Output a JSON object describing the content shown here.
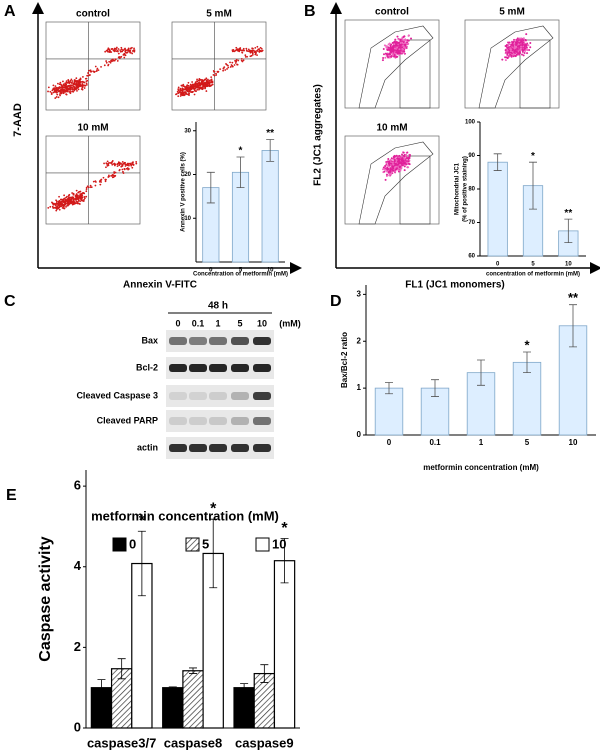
{
  "panels": {
    "A": {
      "letter": "A",
      "y_label": "7-AAD",
      "x_label": "Annexin V-FITC",
      "plots": [
        "control",
        "5 mM",
        "10 mM"
      ]
    },
    "B": {
      "letter": "B",
      "y_label": "FL2 (JC1 aggregates)",
      "x_label": "FL1 (JC1 monomers)",
      "plots": [
        "control",
        "5 mM",
        "10 mM"
      ]
    },
    "C": {
      "letter": "C",
      "time": "48 h",
      "unit": "(mM)",
      "doses": [
        "0",
        "0.1",
        "1",
        "5",
        "10"
      ],
      "bands": [
        "Bax",
        "Bcl-2",
        "Cleaved Caspase 3",
        "Cleaved PARP",
        "actin"
      ]
    },
    "D": {
      "letter": "D"
    },
    "E": {
      "letter": "E"
    }
  },
  "chart_data": [
    {
      "type": "bar",
      "y_label": "Annexin V positive cells (%)",
      "x_label": "Concentration of metformin (mM)",
      "categories": [
        "0",
        "5",
        "10"
      ],
      "values": [
        17,
        20.5,
        25.5
      ],
      "errors": [
        3.5,
        3.5,
        2.5
      ],
      "significance": [
        null,
        "*",
        "**"
      ],
      "color": "#ddeeff",
      "ylim": [
        0,
        32
      ],
      "yticks": [
        10,
        20,
        30
      ]
    },
    {
      "type": "bar",
      "y_label": [
        "Mitochondrial JC1",
        "(% of positive staining)"
      ],
      "x_label": "concentration of metformin (mM)",
      "categories": [
        "0",
        "5",
        "10"
      ],
      "values": [
        88,
        81,
        67.5
      ],
      "errors": [
        2.5,
        7,
        3.5
      ],
      "significance": [
        null,
        "*",
        "**"
      ],
      "color": "#ddeeff",
      "ylim": [
        60,
        100
      ],
      "yticks": [
        60,
        70,
        80,
        90,
        100
      ]
    },
    {
      "type": "bar",
      "y_label": "Bax/Bcl-2 ratio",
      "x_label": "metformin concentration (mM)",
      "categories": [
        "0",
        "0.1",
        "1",
        "5",
        "10"
      ],
      "values": [
        1.0,
        1.0,
        1.33,
        1.55,
        2.33
      ],
      "errors": [
        0.12,
        0.18,
        0.27,
        0.22,
        0.45
      ],
      "significance": [
        null,
        null,
        null,
        "*",
        "**"
      ],
      "color": "#ddeeff",
      "ylim": [
        0,
        3.2
      ],
      "yticks": [
        0,
        1,
        2,
        3
      ]
    },
    {
      "type": "grouped-bar",
      "y_label": "Caspase activity",
      "legend_title": "metformin concentration (mM)",
      "categories": [
        "caspase3/7",
        "caspase8",
        "caspase9"
      ],
      "series": [
        {
          "name": "0",
          "color": "#000000",
          "values": [
            1.0,
            1.0,
            1.0
          ],
          "errors": [
            0.2,
            0.02,
            0.1
          ]
        },
        {
          "name": "5",
          "color": "#ffffff",
          "hatch": true,
          "values": [
            1.47,
            1.42,
            1.35
          ],
          "errors": [
            0.25,
            0.07,
            0.22
          ]
        },
        {
          "name": "10",
          "color": "#ffffff",
          "values": [
            4.08,
            4.33,
            4.15
          ],
          "errors": [
            0.8,
            0.85,
            0.55
          ],
          "significance": [
            "*",
            "*",
            "*"
          ]
        }
      ],
      "ylim": [
        0,
        6.4
      ],
      "yticks": [
        0,
        2,
        4,
        6
      ]
    }
  ]
}
